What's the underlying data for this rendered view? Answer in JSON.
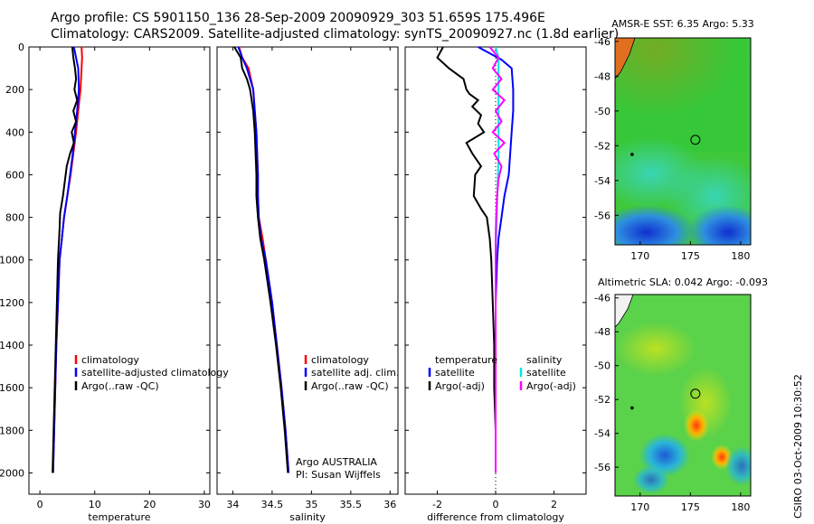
{
  "figure": {
    "title_line1": "Argo profile: CS 5901150_136 28-Sep-2009 20090929_303 51.659S 175.496E",
    "title_line2": "Climatology: CARS2009. Satellite-adjusted climatology: synTS_20090927.nc (1.8d earlier)",
    "footer_vertical": "CSIRO 03-Oct-2009 10:30:52",
    "agency_line1": "Argo AUSTRALIA",
    "agency_line2": "PI: Susan Wijffels",
    "colors": {
      "climatology": "#ff0000",
      "satellite": "#0000ff",
      "argo": "#000000",
      "sal_satellite": "#00e5e5",
      "sal_argo": "#ff00ff"
    }
  },
  "chart_data": [
    {
      "type": "line",
      "xlabel": "temperature",
      "ylabel": "",
      "xlim": [
        -2,
        31
      ],
      "ylim": [
        2100,
        0
      ],
      "x_ticks": [
        0,
        10,
        20,
        30
      ],
      "y_ticks": [
        0,
        200,
        400,
        600,
        800,
        1000,
        1200,
        1400,
        1600,
        1800,
        2000
      ],
      "legend": [
        "climatology",
        "satellite-adjusted climatology",
        "Argo(..raw -QC)"
      ],
      "series": [
        {
          "name": "climatology",
          "color": "#ff0000",
          "points": [
            [
              7.6,
              0
            ],
            [
              7.7,
              50
            ],
            [
              7.6,
              100
            ],
            [
              7.4,
              200
            ],
            [
              7.0,
              300
            ],
            [
              6.6,
              400
            ],
            [
              6.1,
              500
            ],
            [
              5.6,
              600
            ],
            [
              5.0,
              700
            ],
            [
              4.4,
              800
            ],
            [
              4.0,
              900
            ],
            [
              3.6,
              1000
            ],
            [
              3.3,
              1200
            ],
            [
              3.0,
              1400
            ],
            [
              2.8,
              1600
            ],
            [
              2.6,
              1800
            ],
            [
              2.4,
              2000
            ]
          ]
        },
        {
          "name": "satellite-adjusted climatology",
          "color": "#0000ff",
          "points": [
            [
              6.2,
              0
            ],
            [
              6.6,
              50
            ],
            [
              7.0,
              100
            ],
            [
              7.1,
              200
            ],
            [
              6.8,
              300
            ],
            [
              6.4,
              400
            ],
            [
              6.0,
              500
            ],
            [
              5.5,
              600
            ],
            [
              5.0,
              700
            ],
            [
              4.4,
              800
            ],
            [
              4.0,
              900
            ],
            [
              3.6,
              1000
            ],
            [
              3.3,
              1200
            ],
            [
              3.0,
              1400
            ],
            [
              2.8,
              1600
            ],
            [
              2.6,
              1800
            ],
            [
              2.4,
              2000
            ]
          ]
        },
        {
          "name": "Argo(..raw -QC)",
          "color": "#000000",
          "points": [
            [
              5.9,
              0
            ],
            [
              6.1,
              50
            ],
            [
              6.4,
              100
            ],
            [
              6.6,
              150
            ],
            [
              6.3,
              200
            ],
            [
              6.8,
              250
            ],
            [
              6.1,
              300
            ],
            [
              6.6,
              350
            ],
            [
              5.8,
              400
            ],
            [
              6.2,
              450
            ],
            [
              5.5,
              500
            ],
            [
              4.9,
              560
            ],
            [
              4.6,
              620
            ],
            [
              4.2,
              700
            ],
            [
              3.7,
              780
            ],
            [
              3.6,
              850
            ],
            [
              3.5,
              900
            ],
            [
              3.3,
              1000
            ],
            [
              3.1,
              1200
            ],
            [
              2.9,
              1400
            ],
            [
              2.7,
              1600
            ],
            [
              2.5,
              1800
            ],
            [
              2.3,
              2000
            ]
          ]
        }
      ]
    },
    {
      "type": "line",
      "xlabel": "salinity",
      "ylabel": "",
      "xlim": [
        33.8,
        36.1
      ],
      "ylim": [
        2100,
        0
      ],
      "x_ticks": [
        34,
        34.5,
        35,
        35.5,
        36
      ],
      "legend": [
        "climatology",
        "satellite adj. clim.",
        "Argo(..raw -QC)"
      ],
      "series": [
        {
          "name": "climatology",
          "color": "#ff0000",
          "points": [
            [
              34.08,
              0
            ],
            [
              34.12,
              50
            ],
            [
              34.2,
              100
            ],
            [
              34.26,
              200
            ],
            [
              34.28,
              300
            ],
            [
              34.3,
              400
            ],
            [
              34.31,
              500
            ],
            [
              34.32,
              600
            ],
            [
              34.32,
              700
            ],
            [
              34.33,
              800
            ],
            [
              34.38,
              900
            ],
            [
              34.42,
              1000
            ],
            [
              34.5,
              1200
            ],
            [
              34.56,
              1400
            ],
            [
              34.62,
              1600
            ],
            [
              34.67,
              1800
            ],
            [
              34.71,
              2000
            ]
          ]
        },
        {
          "name": "satellite adj. clim.",
          "color": "#0000ff",
          "points": [
            [
              34.07,
              0
            ],
            [
              34.12,
              50
            ],
            [
              34.18,
              100
            ],
            [
              34.26,
              200
            ],
            [
              34.28,
              300
            ],
            [
              34.3,
              400
            ],
            [
              34.31,
              500
            ],
            [
              34.32,
              600
            ],
            [
              34.32,
              700
            ],
            [
              34.33,
              800
            ],
            [
              34.36,
              900
            ],
            [
              34.42,
              1000
            ],
            [
              34.5,
              1200
            ],
            [
              34.56,
              1400
            ],
            [
              34.62,
              1600
            ],
            [
              34.67,
              1800
            ],
            [
              34.71,
              2000
            ]
          ]
        },
        {
          "name": "Argo(..raw -QC)",
          "color": "#000000",
          "points": [
            [
              34.02,
              0
            ],
            [
              34.1,
              50
            ],
            [
              34.12,
              100
            ],
            [
              34.18,
              150
            ],
            [
              34.22,
              200
            ],
            [
              34.26,
              300
            ],
            [
              34.28,
              400
            ],
            [
              34.29,
              500
            ],
            [
              34.3,
              600
            ],
            [
              34.3,
              700
            ],
            [
              34.32,
              800
            ],
            [
              34.35,
              900
            ],
            [
              34.4,
              1000
            ],
            [
              34.48,
              1200
            ],
            [
              34.55,
              1400
            ],
            [
              34.61,
              1600
            ],
            [
              34.66,
              1800
            ],
            [
              34.7,
              2000
            ]
          ]
        }
      ]
    },
    {
      "type": "line",
      "xlabel": "difference from climatology",
      "ylabel": "",
      "xlim": [
        -3.1,
        3.1
      ],
      "ylim": [
        2100,
        0
      ],
      "x_ticks": [
        -2,
        0,
        2
      ],
      "legend": [
        "temperature",
        "satellite",
        "Argo(-adj)",
        "salinity",
        "satellite",
        "Argo(-adj)"
      ],
      "series": [
        {
          "name": "satellite",
          "color": "#0000ff",
          "points": [
            [
              -0.6,
              0
            ],
            [
              0.2,
              60
            ],
            [
              0.55,
              100
            ],
            [
              0.6,
              200
            ],
            [
              0.6,
              300
            ],
            [
              0.55,
              400
            ],
            [
              0.5,
              500
            ],
            [
              0.45,
              600
            ],
            [
              0.3,
              700
            ],
            [
              0.2,
              800
            ],
            [
              0.1,
              900
            ],
            [
              0.05,
              1000
            ],
            [
              0.0,
              1200
            ],
            [
              0.0,
              1400
            ],
            [
              0.0,
              1600
            ],
            [
              0.0,
              1800
            ],
            [
              0.0,
              2000
            ]
          ]
        },
        {
          "name": "Argo(-adj)",
          "color": "#000000",
          "points": [
            [
              -1.8,
              0
            ],
            [
              -2.0,
              50
            ],
            [
              -1.6,
              100
            ],
            [
              -1.1,
              150
            ],
            [
              -1.0,
              200
            ],
            [
              -0.9,
              220
            ],
            [
              -0.6,
              250
            ],
            [
              -0.8,
              280
            ],
            [
              -0.5,
              320
            ],
            [
              -0.6,
              360
            ],
            [
              -0.4,
              400
            ],
            [
              -1.0,
              450
            ],
            [
              -0.8,
              500
            ],
            [
              -0.5,
              560
            ],
            [
              -0.7,
              600
            ],
            [
              -0.75,
              700
            ],
            [
              -0.5,
              760
            ],
            [
              -0.3,
              800
            ],
            [
              -0.2,
              900
            ],
            [
              -0.15,
              1000
            ],
            [
              -0.1,
              1200
            ],
            [
              -0.05,
              1400
            ],
            [
              -0.05,
              1600
            ],
            [
              0.0,
              1800
            ],
            [
              0.0,
              2000
            ]
          ]
        },
        {
          "name": "satellite",
          "color": "#00e5e5",
          "points": [
            [
              0.0,
              0
            ],
            [
              0.1,
              50
            ],
            [
              0.1,
              100
            ],
            [
              0.1,
              200
            ],
            [
              0.1,
              300
            ],
            [
              0.1,
              400
            ],
            [
              0.1,
              500
            ],
            [
              0.08,
              600
            ],
            [
              0.06,
              700
            ],
            [
              0.04,
              800
            ],
            [
              0.02,
              900
            ],
            [
              0.0,
              1000
            ],
            [
              0.0,
              1200
            ],
            [
              0.0,
              1400
            ],
            [
              0.0,
              1600
            ],
            [
              0.0,
              1800
            ],
            [
              0.0,
              2000
            ]
          ]
        },
        {
          "name": "Argo(-adj)",
          "color": "#ff00ff",
          "points": [
            [
              -0.2,
              0
            ],
            [
              0.1,
              50
            ],
            [
              -0.1,
              100
            ],
            [
              0.2,
              150
            ],
            [
              -0.1,
              200
            ],
            [
              0.3,
              250
            ],
            [
              0.0,
              300
            ],
            [
              0.2,
              350
            ],
            [
              -0.1,
              400
            ],
            [
              0.3,
              450
            ],
            [
              -0.05,
              500
            ],
            [
              0.2,
              560
            ],
            [
              0.1,
              620
            ],
            [
              0.05,
              700
            ],
            [
              0.02,
              800
            ],
            [
              0.0,
              900
            ],
            [
              0.0,
              1000
            ],
            [
              0.0,
              1200
            ],
            [
              0.0,
              1400
            ],
            [
              0.0,
              1600
            ],
            [
              0.0,
              1800
            ],
            [
              0.0,
              2000
            ]
          ]
        }
      ]
    },
    {
      "type": "heatmap",
      "title": "AMSR-E SST: 6.35 Argo: 5.33",
      "xlim": [
        167.5,
        181
      ],
      "ylim": [
        -57.7,
        -45.8
      ],
      "x_ticks": [
        170,
        175,
        180
      ],
      "y_ticks": [
        -46,
        -48,
        -50,
        -52,
        -54,
        -56
      ],
      "profile_location": [
        175.496,
        -51.659
      ]
    },
    {
      "type": "heatmap",
      "title": "Altimetric SLA: 0.042 Argo: -0.093",
      "xlim": [
        167.5,
        181
      ],
      "ylim": [
        -57.7,
        -45.8
      ],
      "x_ticks": [
        170,
        175,
        180
      ],
      "y_ticks": [
        -46,
        -48,
        -50,
        -52,
        -54,
        -56
      ],
      "profile_location": [
        175.496,
        -51.659
      ]
    }
  ]
}
